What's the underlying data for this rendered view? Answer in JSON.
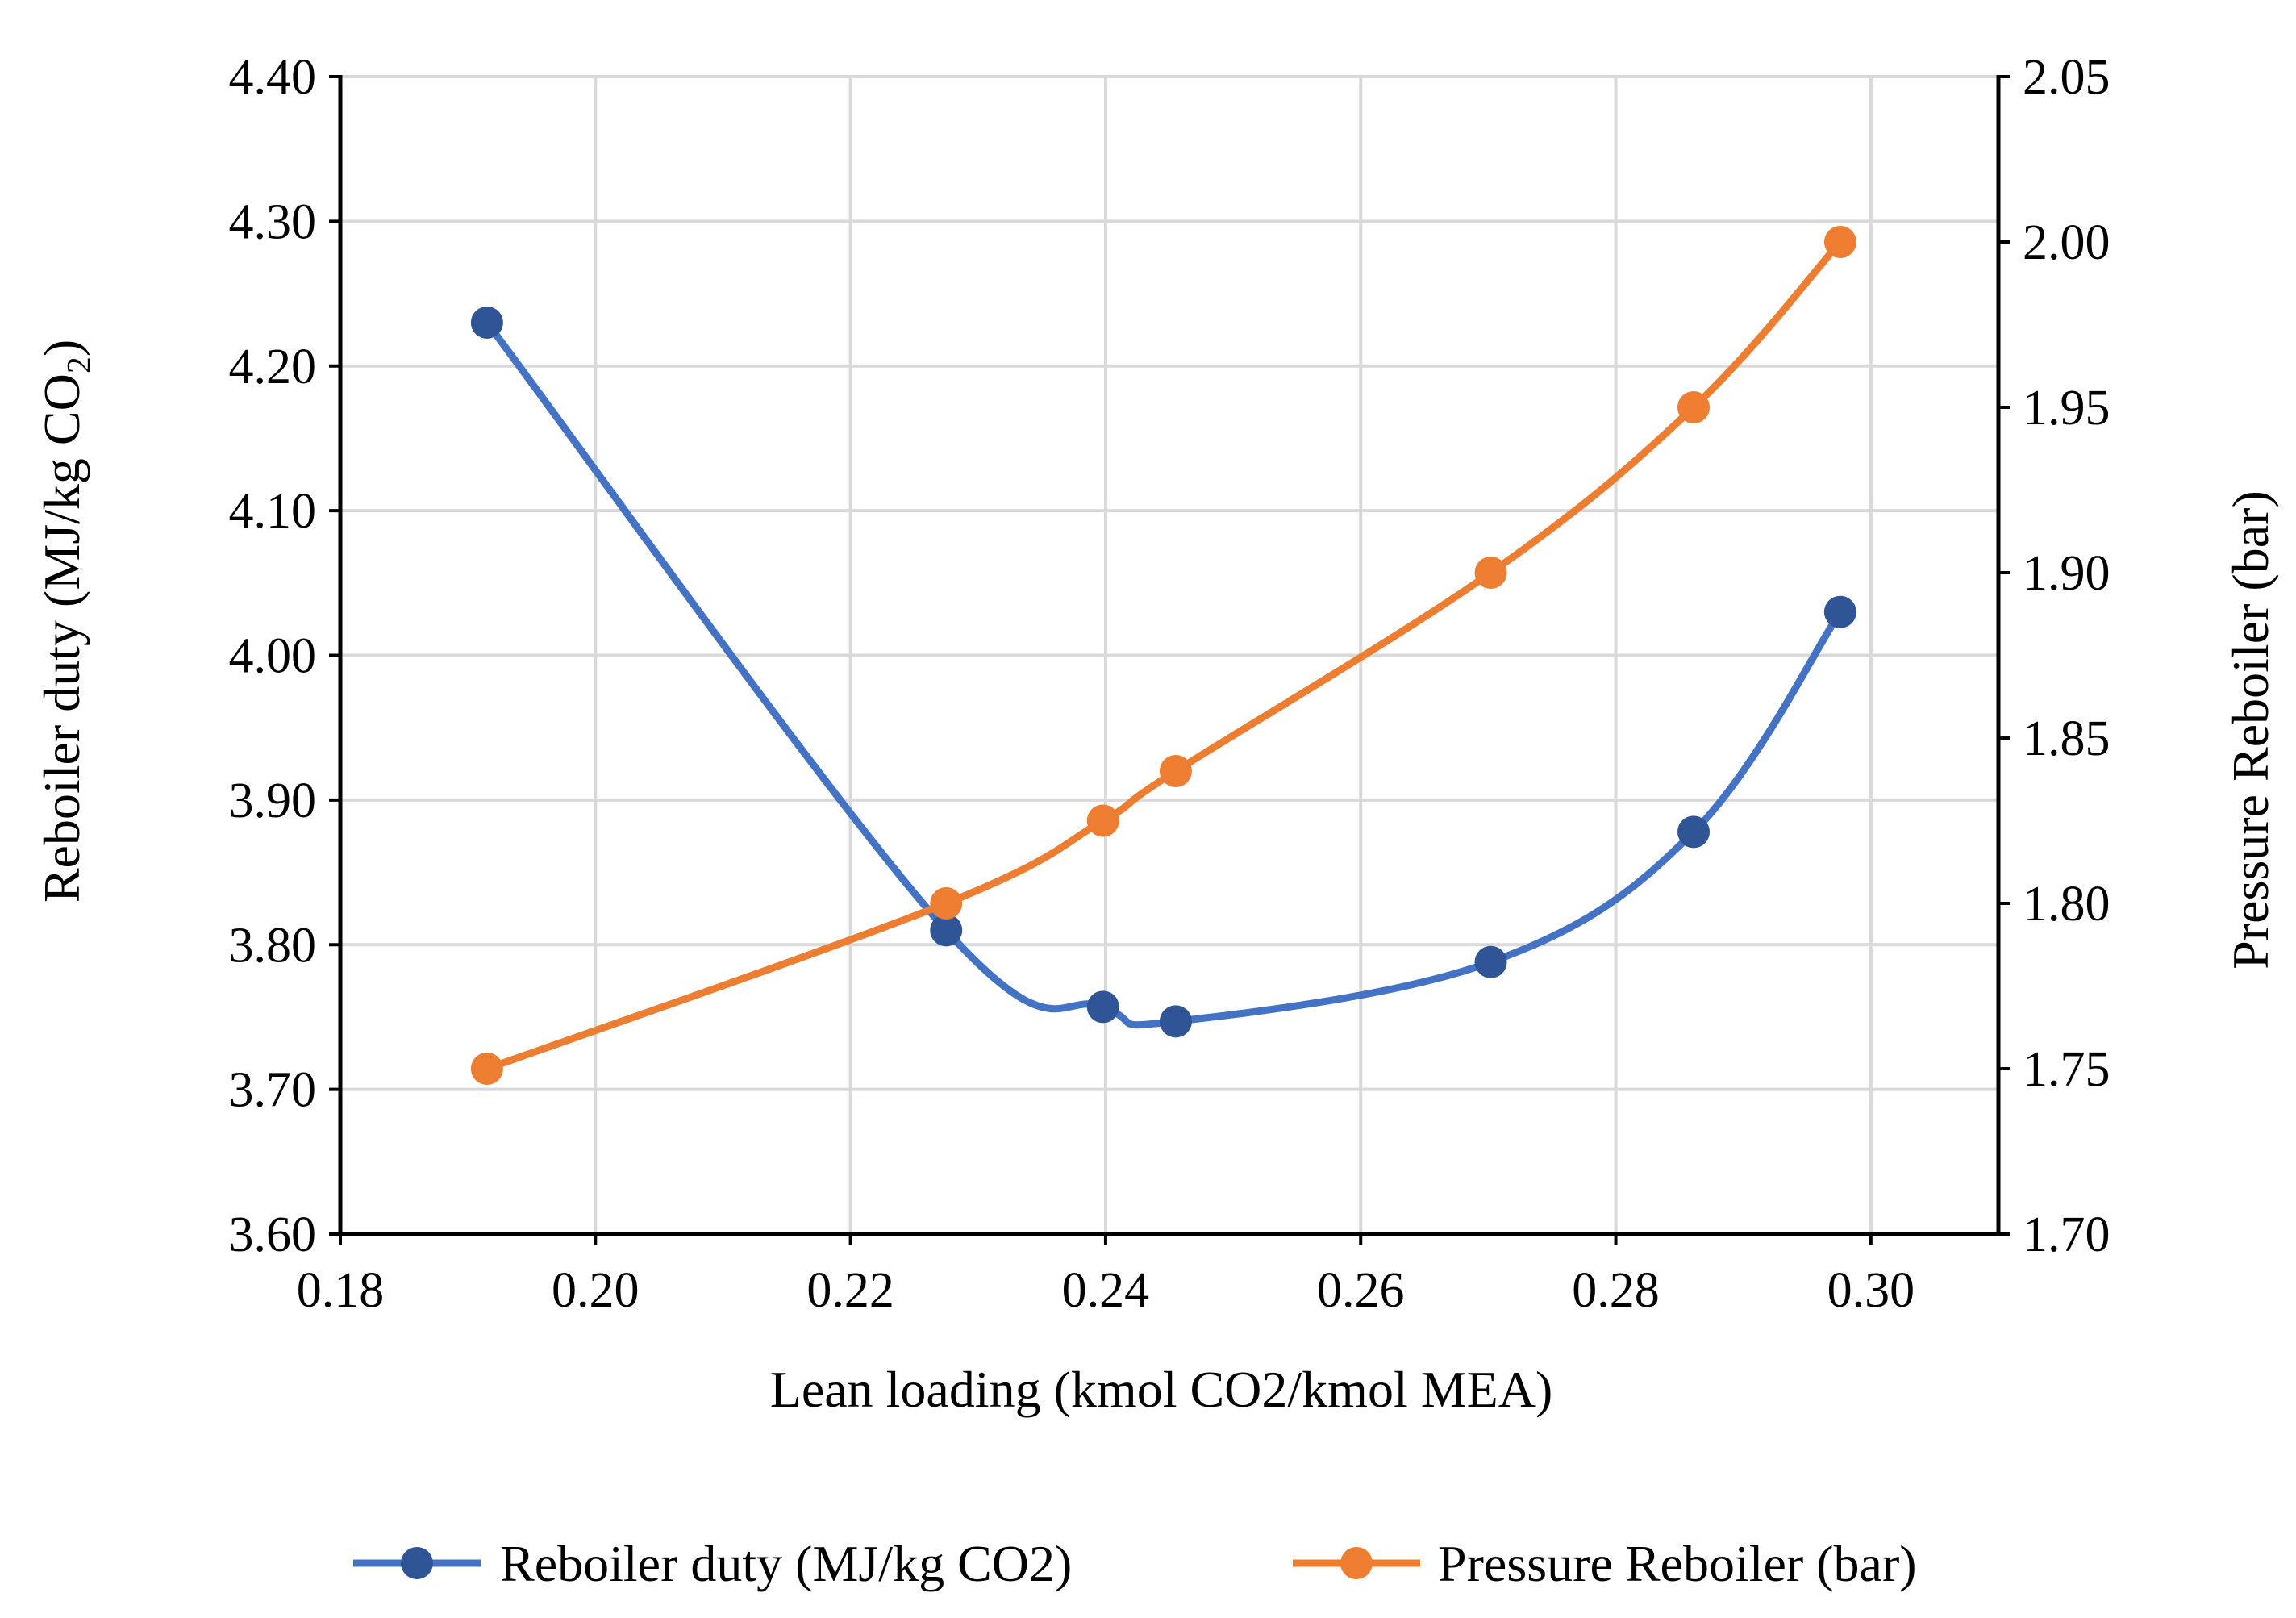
{
  "chart_data": {
    "type": "line",
    "xlabel": "Lean loading (kmol CO2/kmol MEA)",
    "ylabel_left": "Reboiler duty (MJ/kg CO",
    "ylabel_left_sub": "2",
    "ylabel_left_close": ")",
    "ylabel_right": "Pressure Reboiler (bar)",
    "xlim": [
      0.18,
      0.31
    ],
    "ylim_left": [
      3.6,
      4.4
    ],
    "ylim_right": [
      1.7,
      2.05
    ],
    "x_ticks": [
      "0.18",
      "0.20",
      "0.22",
      "0.24",
      "0.26",
      "0.28",
      "0.30"
    ],
    "x_tick_values": [
      0.18,
      0.2,
      0.22,
      0.24,
      0.26,
      0.28,
      0.3
    ],
    "y_left_ticks": [
      "3.60",
      "3.70",
      "3.80",
      "3.90",
      "4.00",
      "4.10",
      "4.20",
      "4.30",
      "4.40"
    ],
    "y_left_tick_values": [
      3.6,
      3.7,
      3.8,
      3.9,
      4.0,
      4.1,
      4.2,
      4.3,
      4.4
    ],
    "y_right_ticks": [
      "1.70",
      "1.75",
      "1.80",
      "1.85",
      "1.90",
      "1.95",
      "2.00",
      "2.05"
    ],
    "y_right_tick_values": [
      1.7,
      1.75,
      1.8,
      1.85,
      1.9,
      1.95,
      2.0,
      2.05
    ],
    "grid": true,
    "legend_position": "bottom",
    "series": [
      {
        "name": "Reboiler duty (MJ/kg CO2)",
        "axis": "left",
        "color": "#4472C4",
        "marker_color": "#2F5597",
        "x": [
          0.1915,
          0.2275,
          0.2398,
          0.2455,
          0.2702,
          0.2861,
          0.2976
        ],
        "y": [
          4.23,
          3.81,
          3.757,
          3.747,
          3.788,
          3.878,
          4.03
        ]
      },
      {
        "name": "Pressure Reboiler (bar)",
        "axis": "right",
        "color": "#ED7D31",
        "marker_color": "#ED7D31",
        "x": [
          0.1915,
          0.2275,
          0.2398,
          0.2455,
          0.2702,
          0.2861,
          0.2976
        ],
        "y": [
          1.75,
          1.8,
          1.825,
          1.84,
          1.9,
          1.95,
          2.0
        ]
      }
    ]
  }
}
